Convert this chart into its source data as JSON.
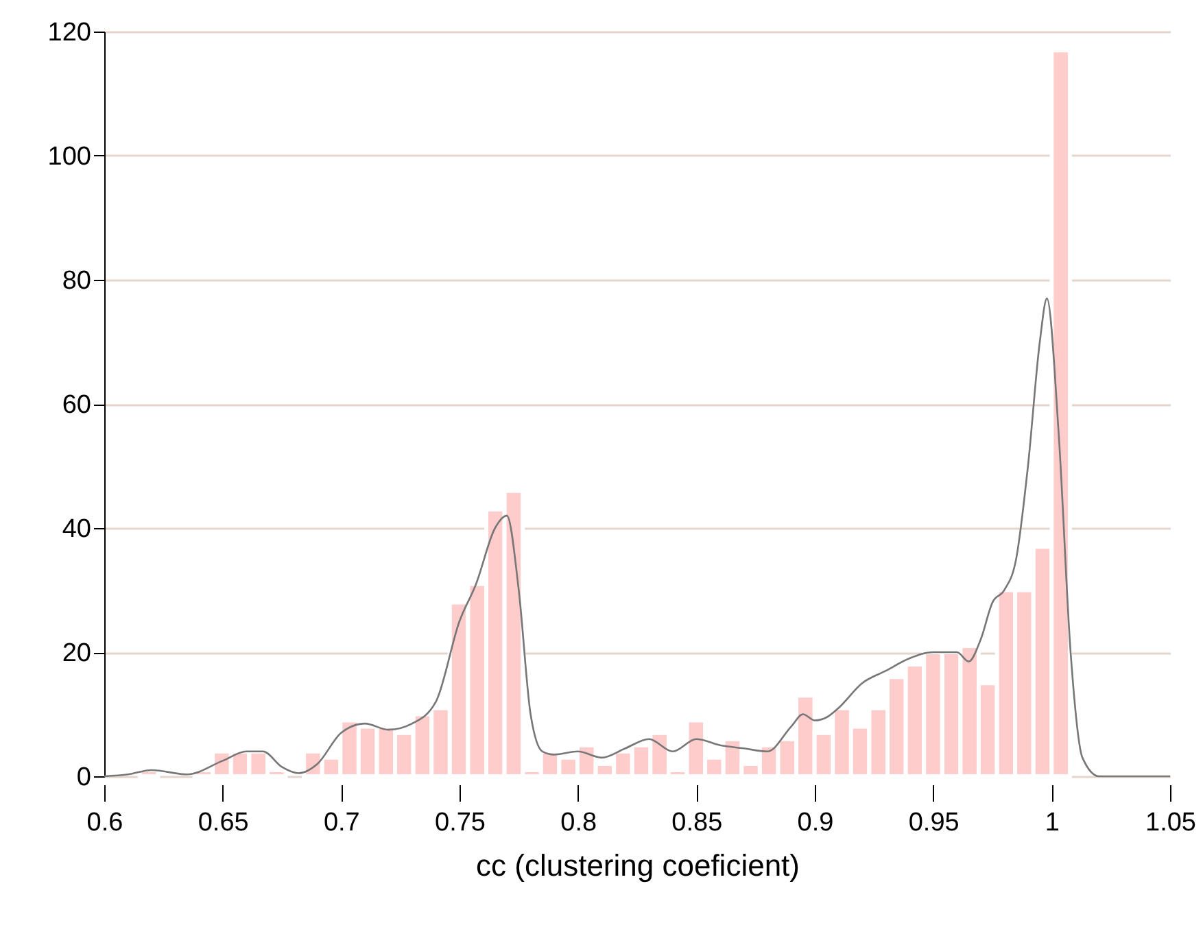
{
  "chart_data": {
    "type": "histogram",
    "xlabel": "cc (clustering coeficient)",
    "bins": [
      0.615,
      0.6227,
      0.6304,
      0.6381,
      0.6458,
      0.6535,
      0.6612,
      0.6689,
      0.6766,
      0.6843,
      0.692,
      0.6997,
      0.7074,
      0.7151,
      0.7228,
      0.7305,
      0.7382,
      0.7459,
      0.7536,
      0.7613,
      0.769,
      0.7767,
      0.7844,
      0.7921,
      0.7998,
      0.8075,
      0.8152,
      0.8229,
      0.8306,
      0.8383,
      0.846,
      0.8537,
      0.8614,
      0.8691,
      0.8768,
      0.8845,
      0.8922,
      0.8999,
      0.9076,
      0.9153,
      0.923,
      0.9307,
      0.9384,
      0.9461,
      0.9538,
      0.9615,
      0.9692,
      0.9769,
      0.9846,
      0.9923,
      1.0,
      1.0077
    ],
    "values": [
      1,
      0,
      0,
      1,
      4,
      4,
      4,
      1,
      0,
      4,
      3,
      9,
      8,
      8,
      7,
      10,
      11,
      28,
      31,
      43,
      46,
      1,
      4,
      3,
      5,
      2,
      4,
      5,
      7,
      1,
      9,
      3,
      6,
      2,
      5,
      6,
      13,
      7,
      11,
      8,
      11,
      16,
      18,
      20,
      20,
      21,
      15,
      30,
      30,
      37,
      117
    ],
    "color": "#ffcccc",
    "series": [
      {
        "type": "line",
        "color": "#777777",
        "x": [
          0.6,
          0.61,
          0.62,
          0.635,
          0.65,
          0.66,
          0.667,
          0.675,
          0.682,
          0.69,
          0.7,
          0.71,
          0.72,
          0.73,
          0.74,
          0.75,
          0.757,
          0.765,
          0.77,
          0.775,
          0.78,
          0.785,
          0.79,
          0.8,
          0.81,
          0.82,
          0.83,
          0.84,
          0.85,
          0.86,
          0.87,
          0.88,
          0.89,
          0.895,
          0.9,
          0.905,
          0.91,
          0.92,
          0.93,
          0.94,
          0.95,
          0.96,
          0.965,
          0.97,
          0.975,
          0.98,
          0.985,
          0.99,
          0.995,
          0.998,
          1.003,
          1.008,
          1.013,
          1.02,
          1.05
        ],
        "values": [
          0,
          0.3,
          1,
          0.3,
          2.5,
          4,
          4,
          1.5,
          0.5,
          2,
          7,
          8.5,
          7.5,
          8.5,
          12,
          25,
          31,
          40,
          42,
          30,
          10,
          4,
          3.5,
          4,
          3,
          4.5,
          6,
          4,
          6,
          5,
          4.5,
          4,
          8,
          10,
          9,
          9.5,
          11,
          15,
          17,
          19,
          20,
          20,
          18.5,
          22,
          28,
          30,
          35,
          50,
          70,
          77,
          55,
          20,
          3,
          0,
          0
        ]
      }
    ],
    "xlim": [
      0.6,
      1.05
    ],
    "xticks": [
      0.6,
      0.65,
      0.7,
      0.75,
      0.8,
      0.85,
      0.9,
      0.95,
      1,
      1.05
    ],
    "ylim": [
      0,
      120
    ],
    "yticks": [
      0,
      20,
      40,
      60,
      80,
      100,
      120
    ],
    "grid": "y"
  }
}
